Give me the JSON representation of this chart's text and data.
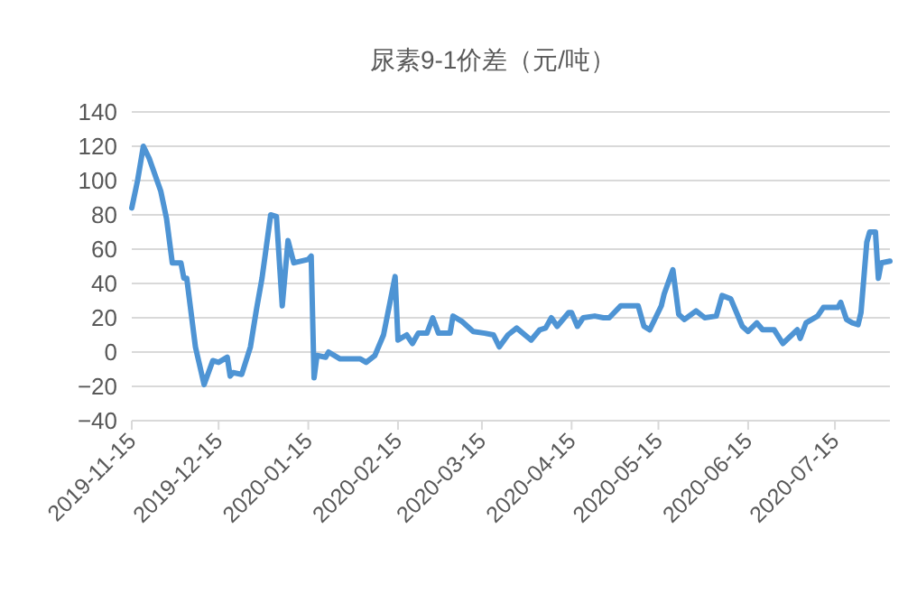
{
  "chart_data": {
    "type": "line",
    "title": "尿素9-1价差（元/吨）",
    "x": [
      "2019-11-15",
      "2019-11-17",
      "2019-11-19",
      "2019-11-21",
      "2019-11-25",
      "2019-11-27",
      "2019-11-29",
      "2019-12-02",
      "2019-12-03",
      "2019-12-04",
      "2019-12-07",
      "2019-12-10",
      "2019-12-13",
      "2019-12-15",
      "2019-12-18",
      "2019-12-19",
      "2019-12-20",
      "2019-12-23",
      "2019-12-26",
      "2019-12-28",
      "2019-12-30",
      "2020-01-02",
      "2020-01-04",
      "2020-01-06",
      "2020-01-08",
      "2020-01-10",
      "2020-01-15",
      "2020-01-16",
      "2020-01-17",
      "2020-01-18",
      "2020-01-21",
      "2020-01-22",
      "2020-01-26",
      "2020-02-02",
      "2020-02-04",
      "2020-02-07",
      "2020-02-10",
      "2020-02-14",
      "2020-02-15",
      "2020-02-18",
      "2020-02-20",
      "2020-02-22",
      "2020-02-25",
      "2020-02-27",
      "2020-02-29",
      "2020-03-04",
      "2020-03-05",
      "2020-03-08",
      "2020-03-12",
      "2020-03-16",
      "2020-03-19",
      "2020-03-21",
      "2020-03-24",
      "2020-03-27",
      "2020-04-01",
      "2020-04-04",
      "2020-04-06",
      "2020-04-08",
      "2020-04-10",
      "2020-04-14",
      "2020-04-15",
      "2020-04-17",
      "2020-04-19",
      "2020-04-23",
      "2020-04-26",
      "2020-04-28",
      "2020-05-02",
      "2020-05-08",
      "2020-05-10",
      "2020-05-12",
      "2020-05-16",
      "2020-05-17",
      "2020-05-20",
      "2020-05-22",
      "2020-05-24",
      "2020-05-28",
      "2020-05-31",
      "2020-06-04",
      "2020-06-06",
      "2020-06-09",
      "2020-06-13",
      "2020-06-15",
      "2020-06-18",
      "2020-06-20",
      "2020-06-24",
      "2020-06-27",
      "2020-07-02",
      "2020-07-03",
      "2020-07-05",
      "2020-07-09",
      "2020-07-11",
      "2020-07-16",
      "2020-07-17",
      "2020-07-19",
      "2020-07-21",
      "2020-07-23",
      "2020-07-24",
      "2020-07-26",
      "2020-07-27",
      "2020-07-29",
      "2020-07-30",
      "2020-07-31",
      "2020-08-03"
    ],
    "series": [
      {
        "color": "#4e94d4",
        "values": [
          84,
          100,
          120,
          113,
          94,
          78,
          52,
          52,
          43,
          43,
          3,
          -19,
          -5,
          -6,
          -3,
          -14,
          -12,
          -13,
          3,
          24,
          43,
          80,
          79,
          27,
          65,
          52,
          54,
          56,
          -15,
          -2,
          -3,
          0,
          -4,
          -4,
          -6,
          -2,
          10,
          44,
          7,
          10,
          5,
          11,
          11,
          20,
          11,
          11,
          21,
          18,
          12,
          11,
          10,
          3,
          10,
          14,
          7,
          13,
          14,
          20,
          15,
          23,
          23,
          15,
          20,
          21,
          20,
          20,
          27,
          27,
          15,
          13,
          27,
          34,
          48,
          22,
          19,
          24,
          20,
          21,
          33,
          31,
          15,
          12,
          17,
          13,
          13,
          5,
          13,
          8,
          17,
          21,
          26,
          26,
          29,
          19,
          17,
          16,
          23,
          64,
          70,
          70,
          43,
          52,
          53
        ]
      }
    ],
    "xlim": [
      "2019-11-15",
      "2020-08-03"
    ],
    "xticks": [
      "2019-11-15",
      "2019-12-15",
      "2020-01-15",
      "2020-02-15",
      "2020-03-15",
      "2020-04-15",
      "2020-05-15",
      "2020-06-15",
      "2020-07-15"
    ],
    "ylim": [
      -40,
      140
    ],
    "yticks": [
      -40,
      -20,
      0,
      20,
      40,
      60,
      80,
      100,
      120,
      140
    ],
    "grid": "y",
    "line_style": "solid",
    "marker": "none"
  }
}
